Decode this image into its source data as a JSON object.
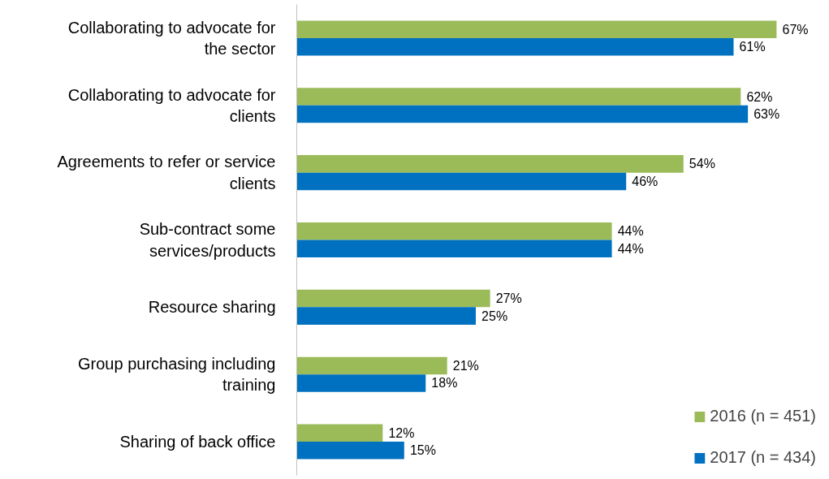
{
  "chart_data": {
    "type": "bar",
    "orientation": "horizontal",
    "categories": [
      "Collaborating to advocate for the sector",
      "Collaborating to advocate for clients",
      "Agreements to refer or service clients",
      "Sub-contract some services/products",
      "Resource sharing",
      "Group purchasing including training",
      "Sharing of back office"
    ],
    "series": [
      {
        "name": "2016 (n = 451)",
        "color": "#9bbb59",
        "values": [
          67,
          62,
          54,
          44,
          27,
          21,
          12
        ],
        "value_labels": [
          "67%",
          "62%",
          "54%",
          "44%",
          "27%",
          "21%",
          "12%"
        ]
      },
      {
        "name": "2017 (n = 434)",
        "color": "#0070c0",
        "values": [
          61,
          63,
          46,
          44,
          25,
          18,
          15
        ],
        "value_labels": [
          "61%",
          "63%",
          "46%",
          "44%",
          "25%",
          "18%",
          "15%"
        ]
      }
    ],
    "tick_labels": "y",
    "grid": false,
    "legend": "bottom right"
  }
}
